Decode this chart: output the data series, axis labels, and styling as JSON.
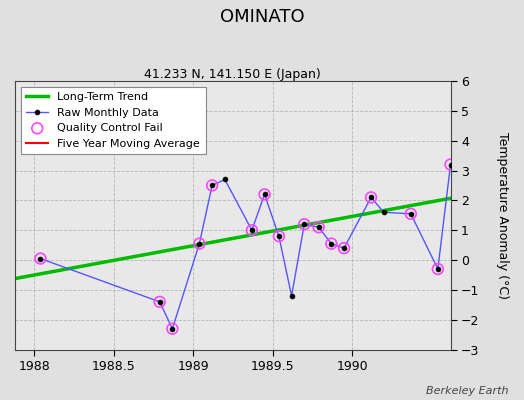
{
  "title": "OMINATO",
  "subtitle": "41.233 N, 141.150 E (Japan)",
  "ylabel": "Temperature Anomaly (°C)",
  "watermark": "Berkeley Earth",
  "xlim": [
    1987.88,
    1990.62
  ],
  "ylim": [
    -3,
    6
  ],
  "xticks": [
    1988,
    1988.5,
    1989,
    1989.5,
    1990
  ],
  "xtick_labels": [
    "1988",
    "1988.5",
    "1989",
    "1989.5",
    "1990"
  ],
  "yticks": [
    -3,
    -2,
    -1,
    0,
    1,
    2,
    3,
    4,
    5,
    6
  ],
  "background_color": "#e0e0e0",
  "plot_bg_color": "#e8e8e8",
  "raw_x": [
    1988.04,
    1988.79,
    1988.87,
    1989.04,
    1989.12,
    1989.2,
    1989.37,
    1989.45,
    1989.54,
    1989.62,
    1989.7,
    1989.79,
    1989.87,
    1989.95,
    1990.12,
    1990.2,
    1990.37,
    1990.54,
    1990.62
  ],
  "raw_y": [
    0.05,
    -1.4,
    -2.3,
    0.55,
    2.5,
    2.7,
    1.0,
    2.2,
    0.8,
    -1.2,
    1.2,
    1.1,
    0.55,
    0.4,
    2.1,
    1.6,
    1.55,
    -0.3,
    3.2
  ],
  "qc_fail_x": [
    1988.04,
    1988.79,
    1988.87,
    1989.04,
    1989.12,
    1989.37,
    1989.45,
    1989.54,
    1989.7,
    1989.79,
    1989.87,
    1989.95,
    1990.12,
    1990.37,
    1990.54,
    1990.62
  ],
  "qc_fail_y": [
    0.05,
    -1.4,
    -2.3,
    0.55,
    2.5,
    1.0,
    2.2,
    0.8,
    1.2,
    1.1,
    0.55,
    0.4,
    2.1,
    1.55,
    -0.3,
    3.2
  ],
  "trend_x": [
    1987.88,
    1990.65
  ],
  "trend_y": [
    -0.62,
    2.1
  ],
  "raw_line_color": "#5555ff",
  "raw_marker_color": "#000000",
  "qc_circle_color": "#ff44ff",
  "trend_color": "#00bb00",
  "mavg_color": "#ff0000",
  "legend_loc": "upper left",
  "title_fontsize": 13,
  "subtitle_fontsize": 9,
  "tick_fontsize": 9,
  "ylabel_fontsize": 9
}
